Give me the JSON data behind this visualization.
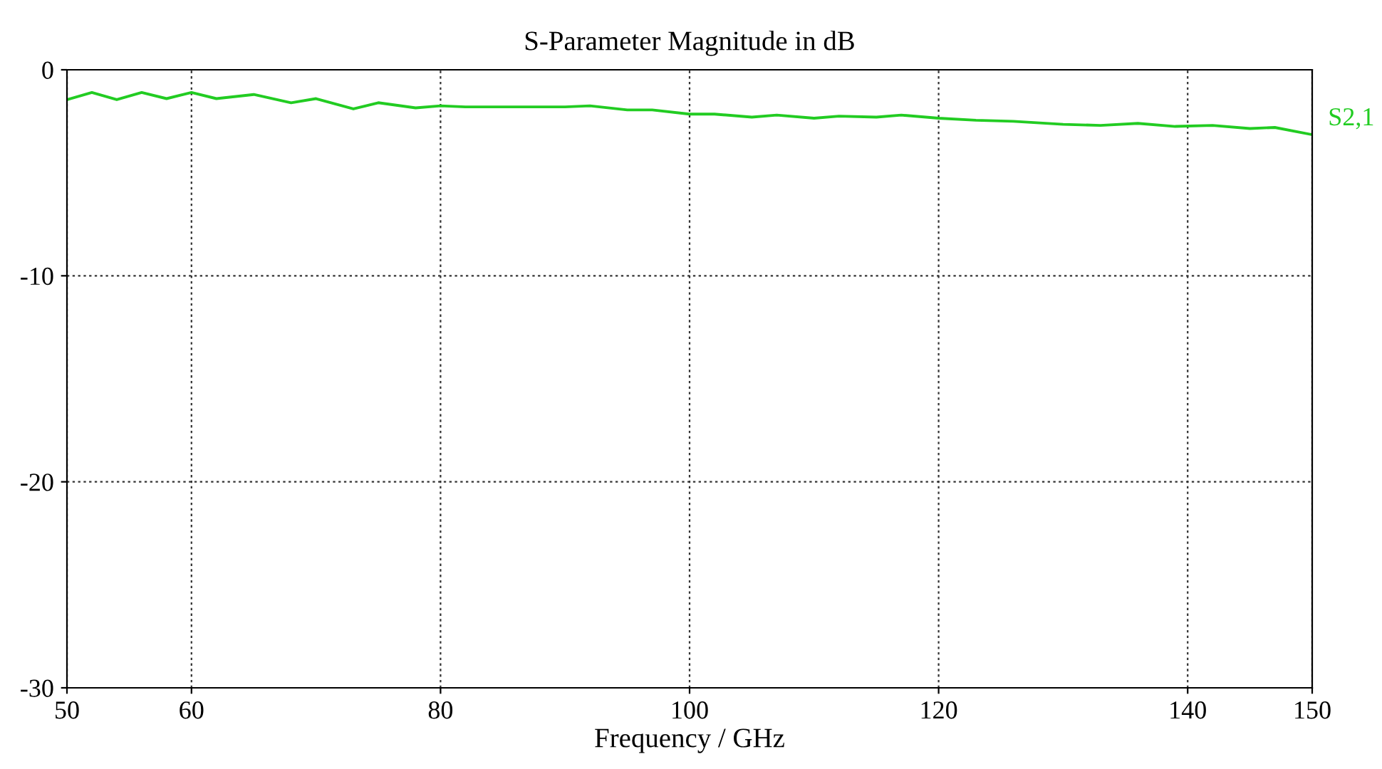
{
  "chart_data": {
    "type": "line",
    "title": "S-Parameter Magnitude in dB",
    "xlabel": "Frequency / GHz",
    "xlim": [
      50,
      150
    ],
    "xticks": [
      50,
      60,
      80,
      100,
      120,
      140,
      150
    ],
    "ylim": [
      -30,
      0
    ],
    "yticks": [
      -30,
      -20,
      -10,
      0
    ],
    "grid": true,
    "line_style": "solid",
    "series": [
      {
        "name": "S2,1",
        "color": "#22cc22",
        "x": [
          50,
          52,
          54,
          56,
          58,
          60,
          62,
          65,
          68,
          70,
          73,
          75,
          78,
          80,
          82,
          90,
          92,
          95,
          97,
          100,
          102,
          105,
          107,
          110,
          112,
          115,
          117,
          120,
          123,
          126,
          130,
          133,
          136,
          139,
          142,
          145,
          147,
          150
        ],
        "values": [
          -1.45,
          -1.1,
          -1.45,
          -1.1,
          -1.4,
          -1.1,
          -1.4,
          -1.2,
          -1.6,
          -1.4,
          -1.9,
          -1.6,
          -1.85,
          -1.75,
          -1.8,
          -1.8,
          -1.75,
          -1.95,
          -1.95,
          -2.15,
          -2.15,
          -2.3,
          -2.2,
          -2.35,
          -2.25,
          -2.3,
          -2.2,
          -2.35,
          -2.45,
          -2.5,
          -2.65,
          -2.7,
          -2.6,
          -2.75,
          -2.7,
          -2.85,
          -2.8,
          -3.15
        ]
      }
    ]
  }
}
